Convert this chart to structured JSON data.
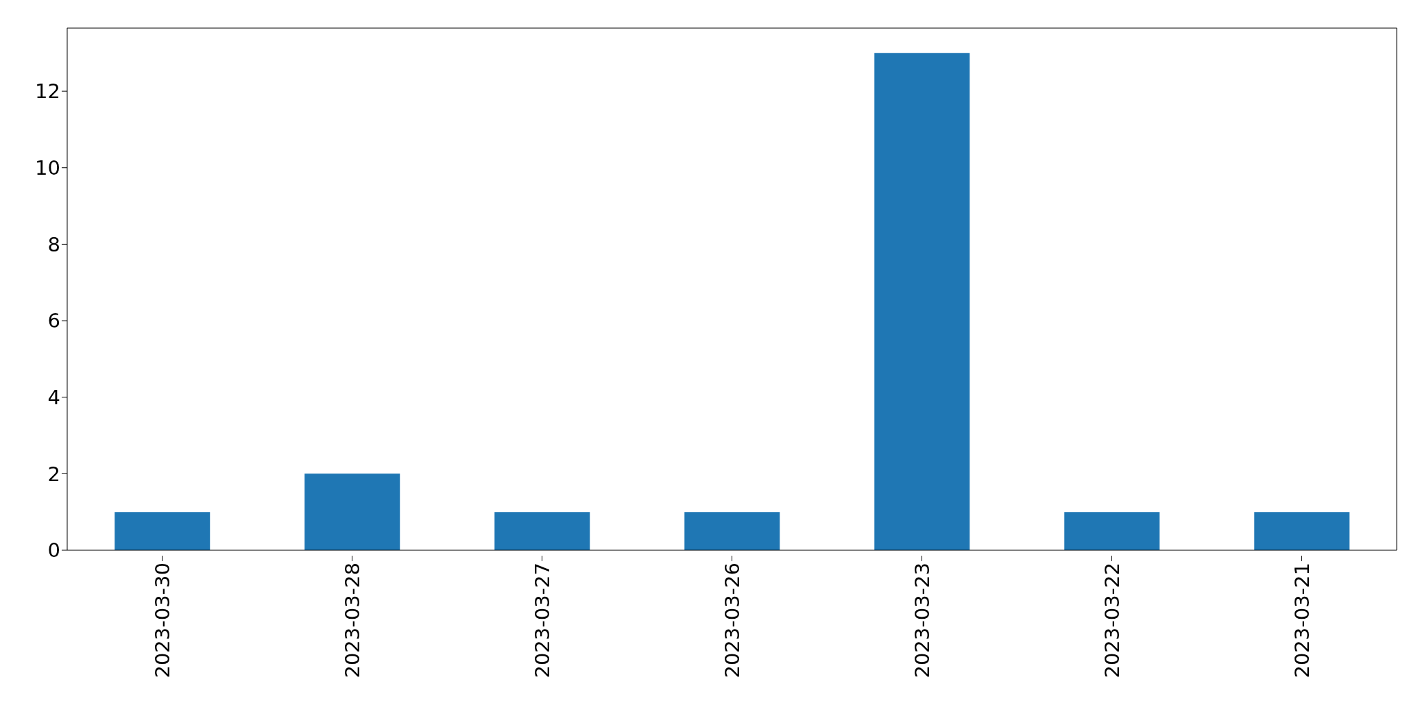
{
  "chart_data": {
    "type": "bar",
    "categories": [
      "2023-03-30",
      "2023-03-28",
      "2023-03-27",
      "2023-03-26",
      "2023-03-23",
      "2023-03-22",
      "2023-03-21"
    ],
    "values": [
      1,
      2,
      1,
      1,
      13,
      1,
      1
    ],
    "color": "#1f77b4",
    "ylim": [
      0,
      13.65
    ],
    "yticks": [
      0,
      2,
      4,
      6,
      8,
      10,
      12
    ],
    "grid": false,
    "legend": false
  }
}
